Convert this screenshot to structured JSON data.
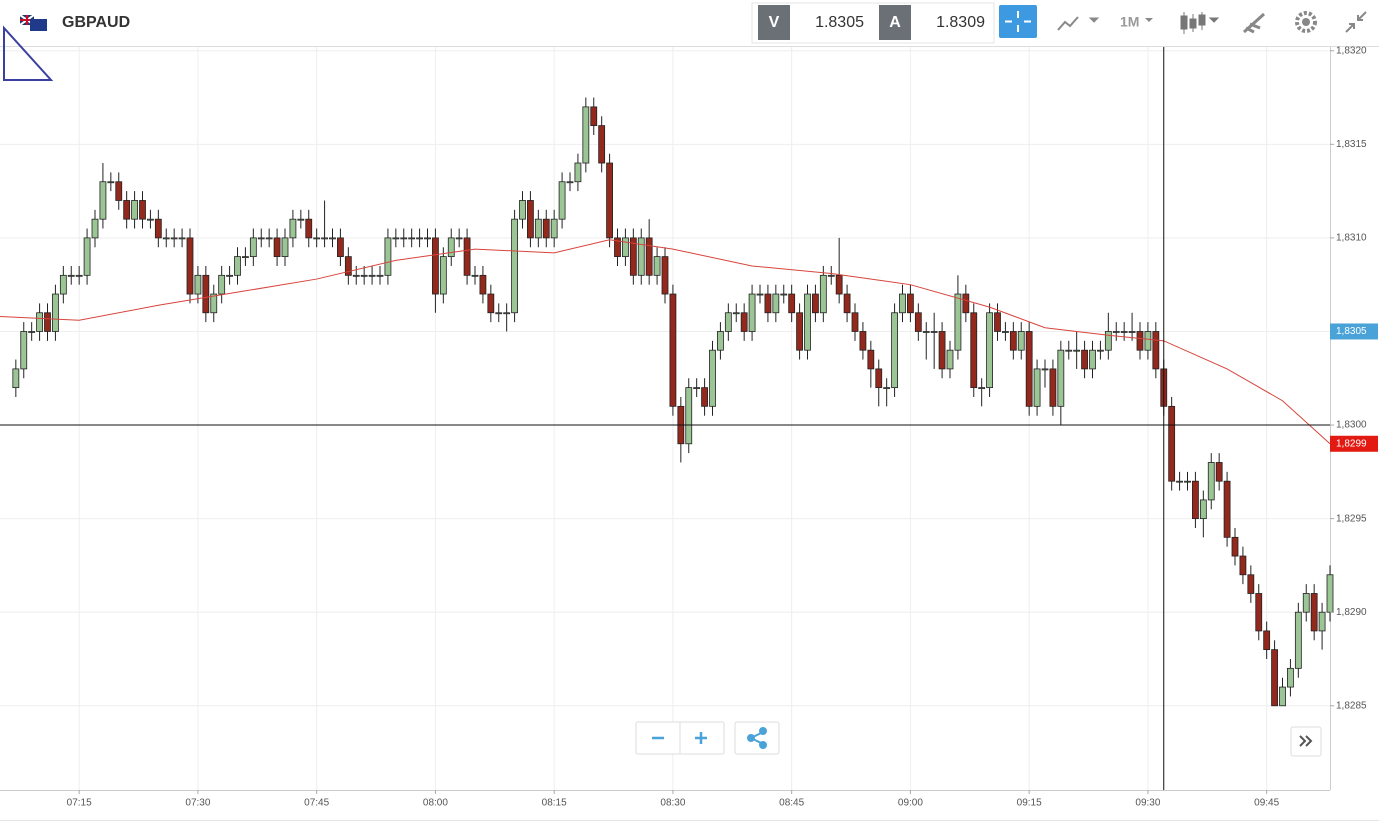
{
  "toolbar": {
    "symbol": "GBPAUD",
    "bid_label": "V",
    "bid": "1.8305",
    "ask_label": "A",
    "ask": "1.8309",
    "timeframe": "1M"
  },
  "chart_data": {
    "type": "candlestick",
    "up_color": "#9cc596",
    "down_color": "#93281d",
    "grid": true,
    "xlim": [
      "07:05",
      "09:53"
    ],
    "xticks": [
      "07:15",
      "07:30",
      "07:45",
      "08:00",
      "08:15",
      "08:30",
      "08:45",
      "09:00",
      "09:15",
      "09:30",
      "09:45"
    ],
    "ylim": [
      1.82805,
      1.83202
    ],
    "yticks": [
      {
        "value": 1.8285,
        "label": "1,8285"
      },
      {
        "value": 1.829,
        "label": "1,8290"
      },
      {
        "value": 1.8295,
        "label": "1,8295"
      },
      {
        "value": 1.83,
        "label": "1,8300"
      },
      {
        "value": 1.8305,
        "label": "1,8305"
      },
      {
        "value": 1.831,
        "label": "1,8310"
      },
      {
        "value": 1.8315,
        "label": "1,8315"
      },
      {
        "value": 1.832,
        "label": "1,8320"
      }
    ],
    "x": [
      "07:07",
      "07:08",
      "07:09",
      "07:10",
      "07:11",
      "07:12",
      "07:13",
      "07:14",
      "07:15",
      "07:16",
      "07:17",
      "07:18",
      "07:19",
      "07:20",
      "07:21",
      "07:22",
      "07:23",
      "07:24",
      "07:25",
      "07:26",
      "07:27",
      "07:28",
      "07:29",
      "07:30",
      "07:31",
      "07:32",
      "07:33",
      "07:34",
      "07:35",
      "07:36",
      "07:37",
      "07:38",
      "07:39",
      "07:40",
      "07:41",
      "07:42",
      "07:43",
      "07:44",
      "07:45",
      "07:46",
      "07:47",
      "07:48",
      "07:49",
      "07:50",
      "07:51",
      "07:52",
      "07:53",
      "07:54",
      "07:55",
      "07:56",
      "07:57",
      "07:58",
      "07:59",
      "08:00",
      "08:01",
      "08:02",
      "08:03",
      "08:04",
      "08:05",
      "08:06",
      "08:07",
      "08:08",
      "08:09",
      "08:10",
      "08:11",
      "08:12",
      "08:13",
      "08:14",
      "08:15",
      "08:16",
      "08:17",
      "08:18",
      "08:19",
      "08:20",
      "08:21",
      "08:22",
      "08:23",
      "08:24",
      "08:25",
      "08:26",
      "08:27",
      "08:28",
      "08:29",
      "08:30",
      "08:31",
      "08:32",
      "08:33",
      "08:34",
      "08:35",
      "08:36",
      "08:37",
      "08:38",
      "08:39",
      "08:40",
      "08:41",
      "08:42",
      "08:43",
      "08:44",
      "08:45",
      "08:46",
      "08:47",
      "08:48",
      "08:49",
      "08:50",
      "08:51",
      "08:52",
      "08:53",
      "08:54",
      "08:55",
      "08:56",
      "08:57",
      "08:58",
      "08:59",
      "09:00",
      "09:01",
      "09:02",
      "09:03",
      "09:04",
      "09:05",
      "09:06",
      "09:07",
      "09:08",
      "09:09",
      "09:10",
      "09:11",
      "09:12",
      "09:13",
      "09:14",
      "09:15",
      "09:16",
      "09:17",
      "09:18",
      "09:19",
      "09:20",
      "09:21",
      "09:22",
      "09:23",
      "09:24",
      "09:25",
      "09:26",
      "09:27",
      "09:28",
      "09:29",
      "09:30",
      "09:31",
      "09:32",
      "09:33",
      "09:34",
      "09:35",
      "09:36",
      "09:37",
      "09:38",
      "09:39",
      "09:40",
      "09:41",
      "09:42",
      "09:43",
      "09:44",
      "09:45",
      "09:46",
      "09:47",
      "09:48",
      "09:49",
      "09:50",
      "09:51",
      "09:52",
      "09:53"
    ],
    "open": [
      1.8302,
      1.8303,
      1.8305,
      1.8305,
      1.8306,
      1.8305,
      1.8307,
      1.8308,
      1.8308,
      1.8308,
      1.831,
      1.8311,
      1.8313,
      1.8313,
      1.8312,
      1.8311,
      1.8312,
      1.8311,
      1.8311,
      1.831,
      1.831,
      1.831,
      1.831,
      1.8307,
      1.8308,
      1.8306,
      1.8307,
      1.8308,
      1.8308,
      1.8309,
      1.8309,
      1.831,
      1.831,
      1.831,
      1.8309,
      1.831,
      1.8311,
      1.8311,
      1.831,
      1.831,
      1.831,
      1.831,
      1.8309,
      1.8308,
      1.8308,
      1.8308,
      1.8308,
      1.8308,
      1.831,
      1.831,
      1.831,
      1.831,
      1.831,
      1.831,
      1.8307,
      1.8309,
      1.831,
      1.831,
      1.8308,
      1.8308,
      1.8307,
      1.8306,
      1.8306,
      1.8306,
      1.8311,
      1.8312,
      1.831,
      1.8311,
      1.831,
      1.8311,
      1.8313,
      1.8313,
      1.8314,
      1.8317,
      1.8316,
      1.8314,
      1.831,
      1.8309,
      1.831,
      1.8308,
      1.831,
      1.8308,
      1.8309,
      1.8307,
      1.8301,
      1.8299,
      1.8302,
      1.8302,
      1.8301,
      1.8304,
      1.8305,
      1.8306,
      1.8306,
      1.8305,
      1.8307,
      1.8307,
      1.8306,
      1.8307,
      1.8307,
      1.8306,
      1.8304,
      1.8307,
      1.8306,
      1.8308,
      1.8308,
      1.8307,
      1.8306,
      1.8305,
      1.8304,
      1.8303,
      1.8302,
      1.8302,
      1.8306,
      1.8307,
      1.8306,
      1.8305,
      1.8305,
      1.8305,
      1.8303,
      1.8304,
      1.8307,
      1.8306,
      1.8302,
      1.8302,
      1.8306,
      1.8305,
      1.8305,
      1.8304,
      1.8305,
      1.8301,
      1.8303,
      1.8303,
      1.8301,
      1.8304,
      1.8304,
      1.8304,
      1.8303,
      1.8304,
      1.8304,
      1.8305,
      1.8305,
      1.8305,
      1.8305,
      1.8304,
      1.8305,
      1.8303,
      1.8301,
      1.8297,
      1.8297,
      1.8297,
      1.8295,
      1.8296,
      1.8298,
      1.8297,
      1.8294,
      1.8293,
      1.8292,
      1.8291,
      1.8289,
      1.8288,
      1.8285,
      1.8286,
      1.8287,
      1.829,
      1.8291,
      1.8289,
      1.829
    ],
    "high": [
      1.83035,
      1.83055,
      1.83055,
      1.83065,
      1.83065,
      1.83075,
      1.83085,
      1.83085,
      1.83085,
      1.83105,
      1.83115,
      1.8314,
      1.83135,
      1.83135,
      1.83125,
      1.83125,
      1.83125,
      1.83115,
      1.83115,
      1.83105,
      1.83105,
      1.83105,
      1.83105,
      1.83085,
      1.83085,
      1.83075,
      1.83085,
      1.83085,
      1.83095,
      1.83095,
      1.83105,
      1.83105,
      1.83105,
      1.83105,
      1.83105,
      1.83115,
      1.83115,
      1.83115,
      1.83105,
      1.8312,
      1.83105,
      1.83105,
      1.83095,
      1.83085,
      1.83085,
      1.83085,
      1.83085,
      1.83105,
      1.83105,
      1.83105,
      1.83105,
      1.83105,
      1.83105,
      1.83105,
      1.83095,
      1.83105,
      1.83105,
      1.83105,
      1.83085,
      1.83085,
      1.83075,
      1.83065,
      1.83065,
      1.83115,
      1.83125,
      1.83125,
      1.83115,
      1.83115,
      1.83115,
      1.83135,
      1.83135,
      1.83145,
      1.83175,
      1.83175,
      1.83165,
      1.83145,
      1.83105,
      1.83105,
      1.83105,
      1.83105,
      1.8311,
      1.83095,
      1.83095,
      1.83075,
      1.83015,
      1.83025,
      1.83025,
      1.83025,
      1.83045,
      1.83055,
      1.83065,
      1.83065,
      1.83065,
      1.83075,
      1.83075,
      1.83075,
      1.83075,
      1.83075,
      1.83075,
      1.83065,
      1.83075,
      1.83075,
      1.83085,
      1.83085,
      1.831,
      1.83075,
      1.83065,
      1.83055,
      1.83045,
      1.83035,
      1.83025,
      1.83065,
      1.83075,
      1.83075,
      1.83065,
      1.83055,
      1.8306,
      1.83055,
      1.83045,
      1.8308,
      1.83075,
      1.83065,
      1.83025,
      1.83065,
      1.83065,
      1.83055,
      1.83055,
      1.83055,
      1.83055,
      1.83035,
      1.83035,
      1.83035,
      1.83045,
      1.83045,
      1.8305,
      1.83045,
      1.83045,
      1.83045,
      1.8306,
      1.83055,
      1.83055,
      1.8306,
      1.83055,
      1.83055,
      1.83055,
      1.83035,
      1.83015,
      1.82975,
      1.82975,
      1.82975,
      1.82965,
      1.82985,
      1.82985,
      1.82975,
      1.82945,
      1.82935,
      1.82925,
      1.82915,
      1.82895,
      1.82885,
      1.82865,
      1.82875,
      1.82905,
      1.82915,
      1.82915,
      1.82905,
      1.82925
    ],
    "low": [
      1.83015,
      1.83025,
      1.83045,
      1.83045,
      1.83045,
      1.83045,
      1.83065,
      1.83075,
      1.83075,
      1.83075,
      1.83095,
      1.83105,
      1.83125,
      1.83115,
      1.83105,
      1.83105,
      1.83105,
      1.83105,
      1.83095,
      1.83095,
      1.83095,
      1.83095,
      1.83065,
      1.83065,
      1.83055,
      1.83055,
      1.83065,
      1.83075,
      1.83075,
      1.83085,
      1.83085,
      1.83095,
      1.83095,
      1.83085,
      1.83085,
      1.83095,
      1.83105,
      1.83095,
      1.83095,
      1.83095,
      1.83095,
      1.83085,
      1.83075,
      1.83075,
      1.83075,
      1.83075,
      1.83075,
      1.83075,
      1.83095,
      1.83095,
      1.83095,
      1.83095,
      1.83095,
      1.8306,
      1.83065,
      1.83085,
      1.83095,
      1.83075,
      1.83075,
      1.83065,
      1.83055,
      1.83055,
      1.8305,
      1.83055,
      1.83105,
      1.83095,
      1.83095,
      1.83095,
      1.83095,
      1.83105,
      1.83125,
      1.83125,
      1.83135,
      1.83155,
      1.83135,
      1.83095,
      1.83085,
      1.83085,
      1.83075,
      1.83075,
      1.83075,
      1.83075,
      1.83065,
      1.83005,
      1.8298,
      1.82985,
      1.83015,
      1.83005,
      1.83005,
      1.83035,
      1.83045,
      1.83055,
      1.83045,
      1.83045,
      1.83065,
      1.83055,
      1.83055,
      1.83065,
      1.83055,
      1.83035,
      1.83035,
      1.83055,
      1.83055,
      1.83075,
      1.83065,
      1.83055,
      1.83045,
      1.83035,
      1.8302,
      1.8301,
      1.8301,
      1.83015,
      1.83055,
      1.83055,
      1.83045,
      1.83035,
      1.8303,
      1.83025,
      1.83025,
      1.83035,
      1.83055,
      1.83015,
      1.8301,
      1.83015,
      1.83045,
      1.83045,
      1.83035,
      1.83035,
      1.83005,
      1.83005,
      1.8302,
      1.83005,
      1.83,
      1.83035,
      1.8303,
      1.83025,
      1.83025,
      1.83035,
      1.83035,
      1.83045,
      1.83045,
      1.83045,
      1.83035,
      1.83035,
      1.83025,
      1.83005,
      1.82965,
      1.82965,
      1.82965,
      1.82945,
      1.8294,
      1.82955,
      1.82965,
      1.82935,
      1.82925,
      1.82915,
      1.82905,
      1.82885,
      1.82875,
      1.8285,
      1.8285,
      1.82855,
      1.82865,
      1.82895,
      1.82885,
      1.8288,
      1.82895
    ],
    "close": [
      1.8303,
      1.8305,
      1.8305,
      1.8306,
      1.8305,
      1.8307,
      1.8308,
      1.8308,
      1.8308,
      1.831,
      1.8311,
      1.8313,
      1.8313,
      1.8312,
      1.8311,
      1.8312,
      1.8311,
      1.8311,
      1.831,
      1.831,
      1.831,
      1.831,
      1.8307,
      1.8308,
      1.8306,
      1.8307,
      1.8308,
      1.8308,
      1.8309,
      1.8309,
      1.831,
      1.831,
      1.831,
      1.8309,
      1.831,
      1.8311,
      1.8311,
      1.831,
      1.831,
      1.831,
      1.831,
      1.8309,
      1.8308,
      1.8308,
      1.8308,
      1.8308,
      1.8308,
      1.831,
      1.831,
      1.831,
      1.831,
      1.831,
      1.831,
      1.8307,
      1.8309,
      1.831,
      1.831,
      1.8308,
      1.8308,
      1.8307,
      1.8306,
      1.8306,
      1.8306,
      1.8311,
      1.8312,
      1.831,
      1.8311,
      1.831,
      1.8311,
      1.8313,
      1.8313,
      1.8314,
      1.8317,
      1.8316,
      1.8314,
      1.831,
      1.8309,
      1.831,
      1.8308,
      1.831,
      1.8308,
      1.8309,
      1.8307,
      1.8301,
      1.8299,
      1.8302,
      1.8302,
      1.8301,
      1.8304,
      1.8305,
      1.8306,
      1.8306,
      1.8305,
      1.8307,
      1.8307,
      1.8306,
      1.8307,
      1.8307,
      1.8306,
      1.8304,
      1.8307,
      1.8306,
      1.8308,
      1.8308,
      1.8307,
      1.8306,
      1.8305,
      1.8304,
      1.8303,
      1.8302,
      1.8302,
      1.8306,
      1.8307,
      1.8306,
      1.8305,
      1.8305,
      1.8305,
      1.8303,
      1.8304,
      1.8307,
      1.8306,
      1.8302,
      1.8302,
      1.8306,
      1.8305,
      1.8305,
      1.8304,
      1.8305,
      1.8301,
      1.8303,
      1.8303,
      1.8301,
      1.8304,
      1.8304,
      1.8304,
      1.8303,
      1.8304,
      1.8304,
      1.8305,
      1.8305,
      1.8305,
      1.8305,
      1.8304,
      1.8305,
      1.8303,
      1.8301,
      1.8297,
      1.8297,
      1.8297,
      1.8295,
      1.8296,
      1.8298,
      1.8297,
      1.8294,
      1.8293,
      1.8292,
      1.8291,
      1.8289,
      1.8288,
      1.8285,
      1.8286,
      1.8287,
      1.829,
      1.8291,
      1.8289,
      1.829,
      1.8292
    ],
    "moving_average": {
      "color": "#d8443c",
      "x": [
        "07:05",
        "07:15",
        "07:25",
        "07:35",
        "07:45",
        "07:55",
        "08:05",
        "08:15",
        "08:22",
        "08:30",
        "08:40",
        "08:50",
        "09:00",
        "09:10",
        "09:17",
        "09:25",
        "09:32",
        "09:40",
        "09:47",
        "09:53"
      ],
      "values": [
        1.83058,
        1.83056,
        1.83064,
        1.83071,
        1.83078,
        1.83088,
        1.83094,
        1.83092,
        1.83099,
        1.83094,
        1.83085,
        1.83081,
        1.83075,
        1.83063,
        1.83052,
        1.83048,
        1.83045,
        1.8303,
        1.83013,
        1.8299
      ]
    },
    "crosshair": {
      "x": "09:32",
      "y": 1.83
    },
    "price_markers": [
      {
        "value": 1.8305,
        "label": "1,8305",
        "color": "#4aa3d8"
      },
      {
        "value": 1.8299,
        "label": "1,8299",
        "color": "#e21a12"
      }
    ]
  }
}
